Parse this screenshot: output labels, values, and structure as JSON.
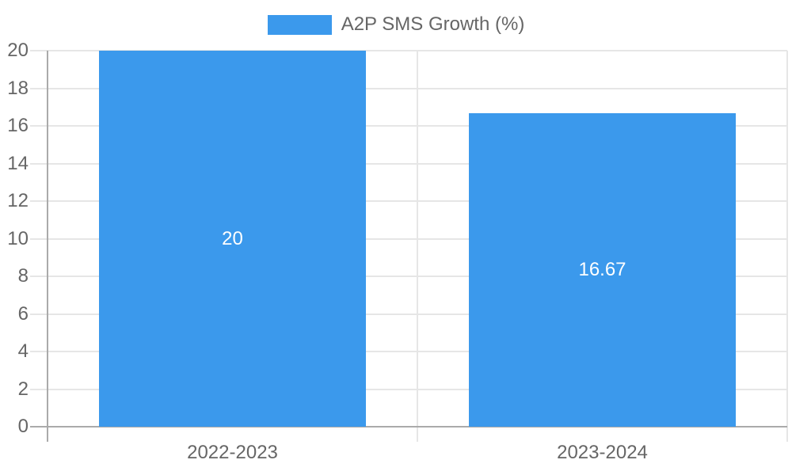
{
  "chart_data": {
    "type": "bar",
    "title": "",
    "categories": [
      "2022-2023",
      "2023-2024"
    ],
    "series": [
      {
        "name": "A2P SMS Growth (%)",
        "values": [
          20,
          16.67
        ]
      }
    ],
    "value_labels": [
      "20",
      "16.67"
    ],
    "legend": {
      "position": "top",
      "label": "A2P SMS Growth (%)"
    },
    "ylim": [
      0,
      20
    ],
    "yticks": [
      "0",
      "2",
      "4",
      "6",
      "8",
      "10",
      "12",
      "14",
      "16",
      "18",
      "20"
    ],
    "grid": true,
    "layout_hints": {
      "bar_to_category_ratio": 0.72,
      "legend_position": "top-center"
    },
    "colors": {
      "bar": "#3b99ec",
      "grid": "#e6e6e6",
      "axis": "#aaaaaa",
      "tick_label": "#666666",
      "legend_label": "#666666",
      "bar_label": "#ffffff",
      "background": "#ffffff"
    }
  }
}
